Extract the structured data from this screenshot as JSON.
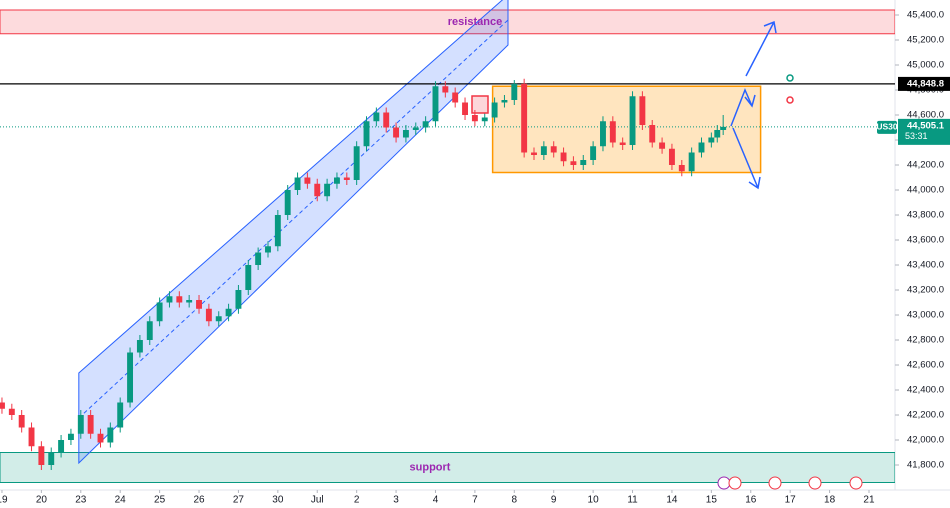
{
  "chart_data": {
    "type": "candlestick",
    "up_color": "#089981",
    "down_color": "#f23645",
    "xlim": [
      -0.05,
      22.66
    ],
    "xticks": [
      {
        "value": 0,
        "label": "19"
      },
      {
        "value": 1,
        "label": "20"
      },
      {
        "value": 2,
        "label": "23"
      },
      {
        "value": 3,
        "label": "24"
      },
      {
        "value": 4,
        "label": "25"
      },
      {
        "value": 5,
        "label": "26"
      },
      {
        "value": 6,
        "label": "27"
      },
      {
        "value": 7,
        "label": "30"
      },
      {
        "value": 8,
        "label": "Jul"
      },
      {
        "value": 9,
        "label": "2"
      },
      {
        "value": 10,
        "label": "3"
      },
      {
        "value": 11,
        "label": "4"
      },
      {
        "value": 12,
        "label": "7"
      },
      {
        "value": 13,
        "label": "8"
      },
      {
        "value": 14,
        "label": "9"
      },
      {
        "value": 15,
        "label": "10"
      },
      {
        "value": 16,
        "label": "11"
      },
      {
        "value": 17,
        "label": "14"
      },
      {
        "value": 18,
        "label": "15"
      },
      {
        "value": 19,
        "label": "16"
      },
      {
        "value": 20,
        "label": "17"
      },
      {
        "value": 21,
        "label": "18"
      },
      {
        "value": 22,
        "label": "21"
      }
    ],
    "ylim": [
      41600,
      45520
    ],
    "yticks": [
      {
        "value": 41800,
        "label": "41,800.0"
      },
      {
        "value": 42000,
        "label": "42,000.0"
      },
      {
        "value": 42200,
        "label": "42,200.0"
      },
      {
        "value": 42400,
        "label": "42,400.0"
      },
      {
        "value": 42600,
        "label": "42,600.0"
      },
      {
        "value": 42800,
        "label": "42,800.0"
      },
      {
        "value": 43000,
        "label": "43,000.0"
      },
      {
        "value": 43200,
        "label": "43,200.0"
      },
      {
        "value": 43400,
        "label": "43,400.0"
      },
      {
        "value": 43600,
        "label": "43,600.0"
      },
      {
        "value": 43800,
        "label": "43,800.0"
      },
      {
        "value": 44000,
        "label": "44,000.0"
      },
      {
        "value": 44200,
        "label": "44,200.0"
      },
      {
        "value": 44400,
        "label": "44,400.0"
      },
      {
        "value": 44600,
        "label": "44,600.0"
      },
      {
        "value": 44800,
        "label": "44,800.0"
      },
      {
        "value": 45000,
        "label": "45,000.0"
      },
      {
        "value": 45200,
        "label": "45,200.0"
      },
      {
        "value": 45400,
        "label": "45,400.0"
      }
    ],
    "resistance": {
      "label": "resistance",
      "ylim": [
        45250,
        45440
      ]
    },
    "support": {
      "label": "support",
      "ylim": [
        41660,
        41900
      ]
    },
    "level": {
      "value": 44848.8,
      "label": "44,848.8"
    },
    "last_price": {
      "value": 44505.1,
      "label": "44,505.1",
      "symbol": "US30",
      "countdown": "53:31"
    },
    "range_box": {
      "x": [
        12.45,
        19.25
      ],
      "y": [
        44140,
        44830
      ]
    },
    "channel": {
      "x": [
        1.95,
        12.84
      ],
      "lower": [
        41816,
        45160
      ],
      "upper": [
        42536,
        45560
      ]
    },
    "candles": [
      [
        0,
        42300,
        42340,
        42210,
        42250
      ],
      [
        0.25,
        42250,
        42290,
        42160,
        42200
      ],
      [
        0.5,
        42200,
        42240,
        42060,
        42100
      ],
      [
        0.75,
        42100,
        42140,
        41910,
        41950
      ],
      [
        1,
        41950,
        41990,
        41760,
        41800
      ],
      [
        1.25,
        41800,
        41940,
        41760,
        41900
      ],
      [
        1.5,
        41900,
        42040,
        41860,
        42000
      ],
      [
        1.75,
        42000,
        42090,
        41960,
        42050
      ],
      [
        2,
        42050,
        42240,
        42010,
        42200
      ],
      [
        2.25,
        42200,
        42240,
        42010,
        42050
      ],
      [
        2.5,
        42050,
        42090,
        41940,
        41980
      ],
      [
        2.75,
        41980,
        42140,
        41940,
        42100
      ],
      [
        3,
        42100,
        42340,
        42060,
        42300
      ],
      [
        3.25,
        42300,
        42740,
        42260,
        42700
      ],
      [
        3.5,
        42700,
        42840,
        42660,
        42800
      ],
      [
        3.75,
        42800,
        42990,
        42760,
        42950
      ],
      [
        4,
        42950,
        43140,
        42910,
        43100
      ],
      [
        4.25,
        43100,
        43190,
        43060,
        43150
      ],
      [
        4.5,
        43150,
        43190,
        43060,
        43100
      ],
      [
        4.75,
        43100,
        43160,
        43060,
        43120
      ],
      [
        5,
        43120,
        43160,
        43010,
        43050
      ],
      [
        5.25,
        43050,
        43090,
        42910,
        42950
      ],
      [
        5.5,
        42950,
        43030,
        42910,
        42990
      ],
      [
        5.75,
        42990,
        43090,
        42950,
        43050
      ],
      [
        6,
        43050,
        43240,
        43010,
        43200
      ],
      [
        6.25,
        43200,
        43440,
        43160,
        43400
      ],
      [
        6.5,
        43400,
        43540,
        43360,
        43500
      ],
      [
        6.75,
        43500,
        43590,
        43460,
        43550
      ],
      [
        7,
        43550,
        43840,
        43510,
        43800
      ],
      [
        7.25,
        43800,
        44040,
        43760,
        44000
      ],
      [
        7.5,
        44000,
        44140,
        43960,
        44100
      ],
      [
        7.75,
        44100,
        44140,
        44010,
        44050
      ],
      [
        8,
        44050,
        44090,
        43910,
        43950
      ],
      [
        8.25,
        43950,
        44090,
        43910,
        44050
      ],
      [
        8.5,
        44050,
        44140,
        44010,
        44100
      ],
      [
        8.75,
        44100,
        44140,
        44040,
        44080
      ],
      [
        9,
        44080,
        44390,
        44040,
        44350
      ],
      [
        9.25,
        44350,
        44590,
        44310,
        44550
      ],
      [
        9.5,
        44550,
        44660,
        44510,
        44620
      ],
      [
        9.75,
        44620,
        44660,
        44460,
        44500
      ],
      [
        10,
        44500,
        44540,
        44380,
        44420
      ],
      [
        10.25,
        44420,
        44520,
        44380,
        44480
      ],
      [
        10.5,
        44480,
        44540,
        44440,
        44500
      ],
      [
        10.75,
        44500,
        44590,
        44460,
        44550
      ],
      [
        11,
        44550,
        44870,
        44510,
        44830
      ],
      [
        11.25,
        44830,
        44870,
        44740,
        44780
      ],
      [
        11.5,
        44780,
        44820,
        44660,
        44700
      ],
      [
        11.75,
        44700,
        44740,
        44560,
        44600
      ],
      [
        12,
        44600,
        44640,
        44510,
        44550
      ],
      [
        12.25,
        44550,
        44620,
        44510,
        44580
      ],
      [
        12.5,
        44580,
        44740,
        44540,
        44700
      ],
      [
        12.75,
        44700,
        44760,
        44660,
        44720
      ],
      [
        13,
        44720,
        44880,
        44680,
        44850
      ],
      [
        13.25,
        44850,
        44890,
        44260,
        44300
      ],
      [
        13.5,
        44300,
        44340,
        44240,
        44280
      ],
      [
        13.75,
        44280,
        44390,
        44240,
        44350
      ],
      [
        14,
        44350,
        44390,
        44260,
        44300
      ],
      [
        14.25,
        44300,
        44340,
        44190,
        44230
      ],
      [
        14.5,
        44230,
        44270,
        44160,
        44200
      ],
      [
        14.75,
        44200,
        44280,
        44160,
        44240
      ],
      [
        15,
        44240,
        44390,
        44200,
        44350
      ],
      [
        15.25,
        44350,
        44590,
        44310,
        44550
      ],
      [
        15.5,
        44550,
        44590,
        44340,
        44380
      ],
      [
        15.75,
        44380,
        44420,
        44320,
        44360
      ],
      [
        16,
        44360,
        44790,
        44320,
        44750
      ],
      [
        16.25,
        44750,
        44790,
        44480,
        44520
      ],
      [
        16.5,
        44520,
        44560,
        44340,
        44380
      ],
      [
        16.75,
        44380,
        44420,
        44290,
        44330
      ],
      [
        17,
        44330,
        44370,
        44160,
        44200
      ],
      [
        17.25,
        44200,
        44240,
        44110,
        44150
      ],
      [
        17.5,
        44150,
        44340,
        44110,
        44300
      ],
      [
        17.75,
        44300,
        44420,
        44260,
        44380
      ],
      [
        18,
        44380,
        44460,
        44340,
        44420
      ],
      [
        18.15,
        44420,
        44520,
        44380,
        44480
      ],
      [
        18.3,
        44480,
        44600,
        44440,
        44505.1
      ]
    ]
  }
}
